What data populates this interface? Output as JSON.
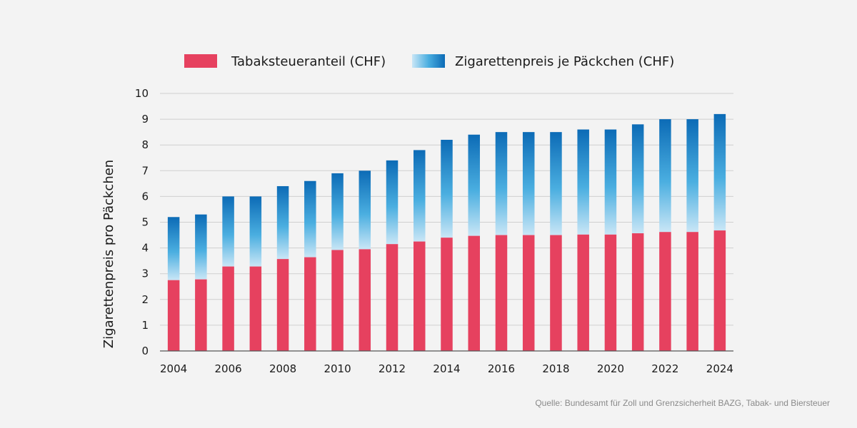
{
  "chart_data": {
    "type": "bar",
    "stacked": true,
    "x": [
      2004,
      2005,
      2006,
      2007,
      2008,
      2009,
      2010,
      2011,
      2012,
      2013,
      2014,
      2015,
      2016,
      2017,
      2018,
      2019,
      2020,
      2021,
      2022,
      2023,
      2024
    ],
    "series": [
      {
        "name": "Tabaksteueranteil (CHF)",
        "color": "#e6415f",
        "values": [
          2.75,
          2.78,
          3.28,
          3.28,
          3.57,
          3.64,
          3.92,
          3.95,
          4.15,
          4.25,
          4.4,
          4.47,
          4.5,
          4.5,
          4.5,
          4.52,
          4.52,
          4.57,
          4.62,
          4.62,
          4.68
        ]
      },
      {
        "name": "Zigarettenpreis je Päckchen (CHF)",
        "color": "#1a7cc4",
        "gradient": [
          "#c9e6f6",
          "#4aaee0",
          "#0c6bb6"
        ],
        "totals": [
          5.2,
          5.3,
          6.0,
          6.0,
          6.4,
          6.6,
          6.9,
          7.0,
          7.4,
          7.8,
          8.2,
          8.4,
          8.5,
          8.5,
          8.5,
          8.6,
          8.6,
          8.8,
          9.0,
          9.0,
          9.2
        ]
      }
    ],
    "ylabel": "Zigarettenpreis pro Päckchen",
    "xlabel": "",
    "ylim": [
      0,
      10
    ],
    "yticks": [
      "0",
      "1",
      "2",
      "3",
      "4",
      "5",
      "6",
      "7",
      "8",
      "9",
      "10"
    ],
    "xtick_labels": [
      "2004",
      "2006",
      "2008",
      "2010",
      "2012",
      "2014",
      "2016",
      "2018",
      "2020",
      "2022",
      "2024"
    ],
    "legend_position": "top-center",
    "grid": true
  },
  "source": "Quelle: Bundesamt für Zoll und Grenzsicherheit BAZG, Tabak- und Biersteuer"
}
